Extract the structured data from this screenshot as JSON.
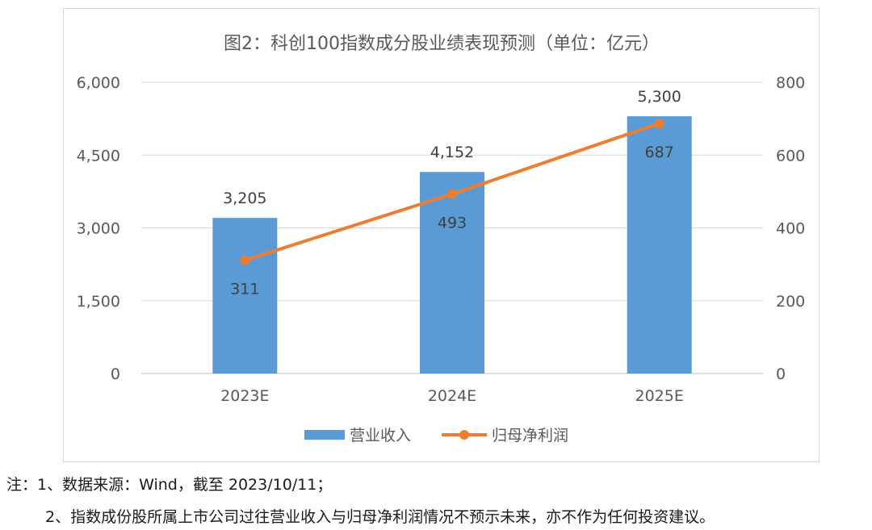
{
  "chart_data": {
    "type": "bar",
    "title": "图2：科创100指数成分股业绩表现预测（单位：亿元）",
    "categories": [
      "2023E",
      "2024E",
      "2025E"
    ],
    "series": [
      {
        "name": "营业收入",
        "kind": "bar",
        "axis": "left",
        "color": "#5b9bd5",
        "values": [
          3205,
          4152,
          5300
        ],
        "labels": [
          "3,205",
          "4,152",
          "5,300"
        ]
      },
      {
        "name": "归母净利润",
        "kind": "line",
        "axis": "right",
        "color": "#ed7d31",
        "values": [
          311,
          493,
          687
        ],
        "labels": [
          "311",
          "493",
          "687"
        ]
      }
    ],
    "y_left": {
      "min": 0,
      "max": 6000,
      "ticks": [
        0,
        1500,
        3000,
        4500,
        6000
      ],
      "tick_labels": [
        "0",
        "1,500",
        "3,000",
        "4,500",
        "6,000"
      ]
    },
    "y_right": {
      "min": 0,
      "max": 800,
      "ticks": [
        0,
        200,
        400,
        600,
        800
      ],
      "tick_labels": [
        "0",
        "200",
        "400",
        "600",
        "800"
      ]
    },
    "grid": true,
    "legend": "bottom"
  },
  "notes": {
    "line1": "注：1、数据来源：Wind，截至 2023/10/11；",
    "line2": "2、指数成份股所属上市公司过往营业收入与归母净利润情况不预示未来，亦不作为任何投资建议。"
  }
}
